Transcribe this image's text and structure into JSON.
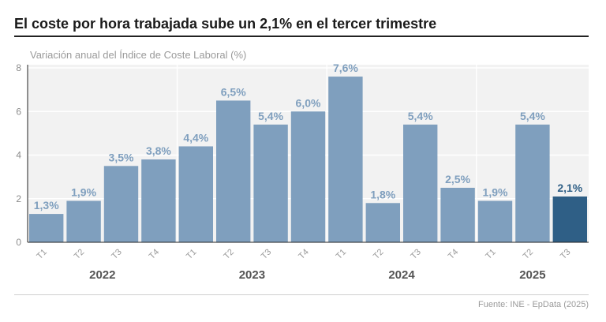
{
  "header": {
    "title": "El coste por hora trabajada sube un 2,1% en el tercer trimestre",
    "subtitle": "Variación anual del Índice de Coste Laboral (%)"
  },
  "footer": {
    "source": "Fuente: INE - EpData (2025)"
  },
  "colors": {
    "bar": "#7f9fbe",
    "bar_highlight": "#2f5f86",
    "label": "#7f9fbe",
    "label_highlight": "#2f5f86",
    "plot_bg": "#f2f2f2",
    "grid": "#ffffff"
  },
  "chart_data": {
    "type": "bar",
    "title": "El coste por hora trabajada sube un 2,1% en el tercer trimestre",
    "subtitle": "Variación anual del Índice de Coste Laboral (%)",
    "ylabel": "Variación anual del Índice de Coste Laboral (%)",
    "xlabel": "",
    "ylim": [
      0,
      8
    ],
    "yticks": [
      0,
      2,
      4,
      6,
      8
    ],
    "grid": true,
    "categories": [
      "T1",
      "T2",
      "T3",
      "T4",
      "T1",
      "T2",
      "T3",
      "T4",
      "T1",
      "T2",
      "T3",
      "T4",
      "T1",
      "T2",
      "T3"
    ],
    "values": [
      1.3,
      1.9,
      3.5,
      3.8,
      4.4,
      6.5,
      5.4,
      6.0,
      7.6,
      1.8,
      5.4,
      2.5,
      1.9,
      5.4,
      2.1
    ],
    "value_labels": [
      "1,3%",
      "1,9%",
      "3,5%",
      "3,8%",
      "4,4%",
      "6,5%",
      "5,4%",
      "6,0%",
      "7,6%",
      "1,8%",
      "5,4%",
      "2,5%",
      "1,9%",
      "5,4%",
      "2,1%"
    ],
    "highlight_index": 14,
    "year_groups": [
      {
        "label": "2022",
        "start": 0,
        "end": 3
      },
      {
        "label": "2023",
        "start": 4,
        "end": 7
      },
      {
        "label": "2024",
        "start": 8,
        "end": 11
      },
      {
        "label": "2025",
        "start": 12,
        "end": 14
      }
    ]
  }
}
